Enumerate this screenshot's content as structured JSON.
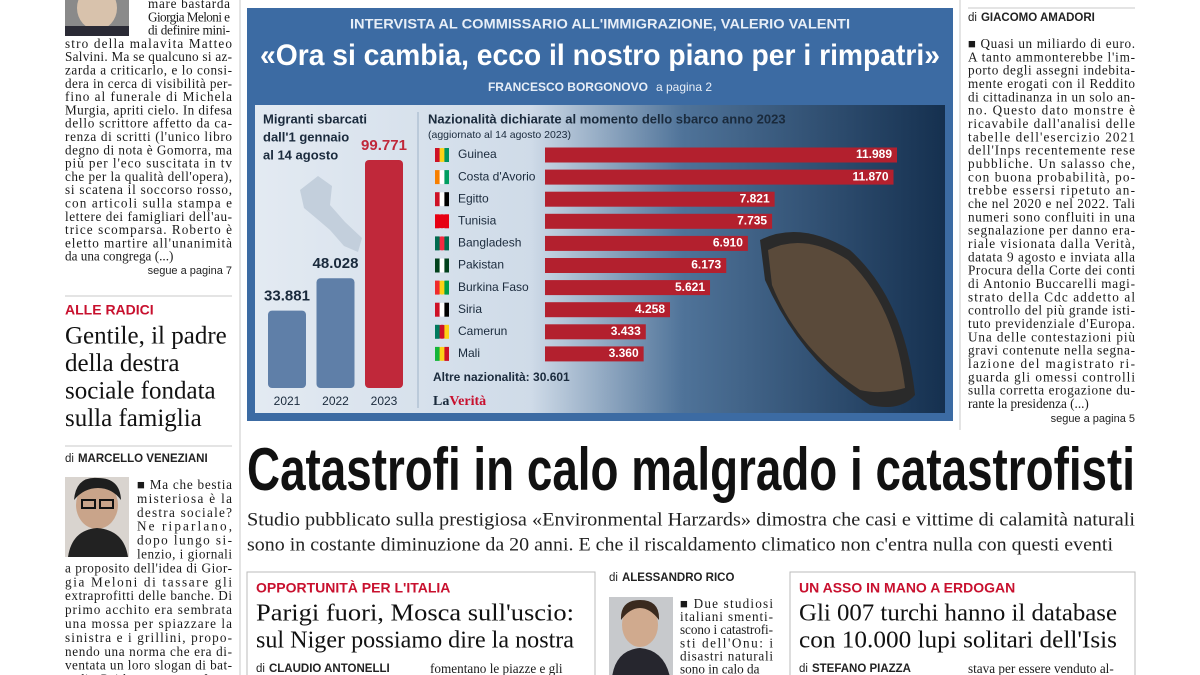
{
  "left_column": {
    "article_lines": [
      "mare bastarda",
      "Giorgia Meloni e",
      "di definire mini-",
      "stro della malavita Matteo",
      "Salvini. Ma se qualcuno si az-",
      "zarda a criticarlo, e lo consi-",
      "dera in cerca di visibilità per-",
      "fino al funerale di Michela",
      "Murgia, apriti cielo. In difesa",
      "dello scrittore affetto da ca-",
      "renza di scritti (l'unico libro",
      "degno di nota è Gomorra, ma",
      "più per l'eco suscitata in tv",
      "che per la qualità dell'opera),",
      "si scatena il soccorso rosso,",
      "con articoli sulla stampa e",
      "lettere dei famigliari dell'au-",
      "trice scomparsa. Roberto è",
      "eletto martire all'unanimità",
      "da una congrega (...)"
    ],
    "continued": "segue a pagina 7",
    "kicker": "ALLE RADICI",
    "headline_lines": [
      "Gentile, il padre",
      "della destra",
      "sociale fondata",
      "sulla famiglia"
    ],
    "byline_prefix": "di",
    "byline": "MARCELLO VENEZIANI",
    "article2_lines": [
      "■ Ma che bestia",
      "misteriosa è la",
      "destra sociale?",
      "Ne riparlano,",
      "dopo lungo si-",
      "lenzio, i giornali",
      "a proposito dell'idea di Gior-",
      "gia Meloni di tassare gli",
      "extraprofitti delle banche. Di",
      "primo acchito era sembrata",
      "una mossa per spiazzare la",
      "sinistra e i grillini, propo-",
      "nendo una norma che era di-",
      "ventata un loro slogan di bat-",
      "taglia. Poi è apparsa uno sfre-"
    ]
  },
  "infographic": {
    "kicker": "INTERVISTA AL COMMISSARIO ALL'IMMIGRAZIONE, VALERIO VALENTI",
    "title": "«Ora si cambia, ecco il nostro piano per i rimpatri»",
    "author": "FRANCESCO BORGONOVO",
    "page_ref": "a pagina 2",
    "chart1": {
      "title_lines": [
        "Migranti sbarcati",
        "dall'1 gennaio",
        "al 14 agosto"
      ],
      "categories": [
        "2021",
        "2022",
        "2023"
      ],
      "values": [
        33881,
        48028,
        99771
      ],
      "value_labels": [
        "33.881",
        "48.028",
        "99.771"
      ]
    },
    "chart2": {
      "title": "Nazionalità dichiarate al momento dello sbarco anno 2023",
      "note": "(aggiornato al 14 agosto 2023)",
      "categories": [
        "Guinea",
        "Costa d'Avorio",
        "Egitto",
        "Tunisia",
        "Bangladesh",
        "Pakistan",
        "Burkina Faso",
        "Siria",
        "Camerun",
        "Mali"
      ],
      "values": [
        11989,
        11870,
        7821,
        7735,
        6910,
        6173,
        5621,
        4258,
        3433,
        3360
      ],
      "value_labels": [
        "11.989",
        "11.870",
        "7.821",
        "7.735",
        "6.910",
        "6.173",
        "5.621",
        "4.258",
        "3.433",
        "3.360"
      ],
      "other": "Altre nazionalità: 30.601"
    },
    "logo": [
      "La",
      "Verità"
    ]
  },
  "right_column": {
    "byline_prefix": "di",
    "byline": "GIACOMO AMADORI",
    "article_lines": [
      "■ Quasi un miliardo di euro.",
      "A tanto ammonterebbe l'im-",
      "porto degli assegni indebita-",
      "mente erogati con il Reddito",
      "di cittadinanza in un solo an-",
      "no. Questo dato monstre è",
      "ricavabile dall'analisi delle",
      "tabelle dell'esercizio 2021",
      "dell'Inps recentemente rese",
      "pubbliche. Un salasso che,",
      "con buona probabilità, po-",
      "trebbe essersi ripetuto an-",
      "che nel 2020 e nel 2022. Tali",
      "numeri sono confluiti in una",
      "segnalazione per danno era-",
      "riale visionata dalla Verità,",
      "datata 9 agosto e inviata alla",
      "Procura della Corte dei conti",
      "di Antonio Buccarelli magi-",
      "strato della Cdc addetto al",
      "controllo del più grande isti-",
      "tuto previdenziale d'Europa.",
      "Una delle contestazioni più",
      "gravi contenute nella segna-",
      "lazione del magistrato ri-",
      "guarda gli omessi controlli",
      "sulla corretta erogazione du-",
      "rante la presidenza (...)"
    ],
    "continued": "segue a pagina 5"
  },
  "main_story": {
    "headline": "Catastrofi in calo malgrado i catastrofisti",
    "subhead_lines": [
      "Studio pubblicato sulla prestigiosa «Environmental Harzards» dimostra che casi e vittime di calamità naturali",
      "sono in costante diminuzione da 20 anni. E che il riscaldamento climatico non c'entra nulla con questi eventi"
    ]
  },
  "bottom_left": {
    "kicker": "OPPORTUNITÀ PER L'ITALIA",
    "headline_lines": [
      "Parigi fuori, Mosca sull'uscio:",
      "sul Niger possiamo dire la nostra"
    ],
    "byline_prefix": "di",
    "byline": "CLAUDIO ANTONELLI",
    "text": "fomentano le piazze e gli"
  },
  "bottom_middle": {
    "byline_prefix": "di",
    "byline": "ALESSANDRO RICO",
    "article_lines": [
      "■ Due studiosi",
      "italiani smenti-",
      "scono i catastrofi-",
      "sti dell'Onu: i",
      "disastri naturali",
      "sono in calo da"
    ]
  },
  "bottom_right": {
    "kicker": "UN ASSO IN MANO A ERDOGAN",
    "headline_lines": [
      "Gli 007 turchi hanno il database",
      "con 10.000 lupi solitari dell'Isis"
    ],
    "byline_prefix": "di",
    "byline": "STEFANO PIAZZA",
    "text": "stava per essere venduto al-"
  }
}
